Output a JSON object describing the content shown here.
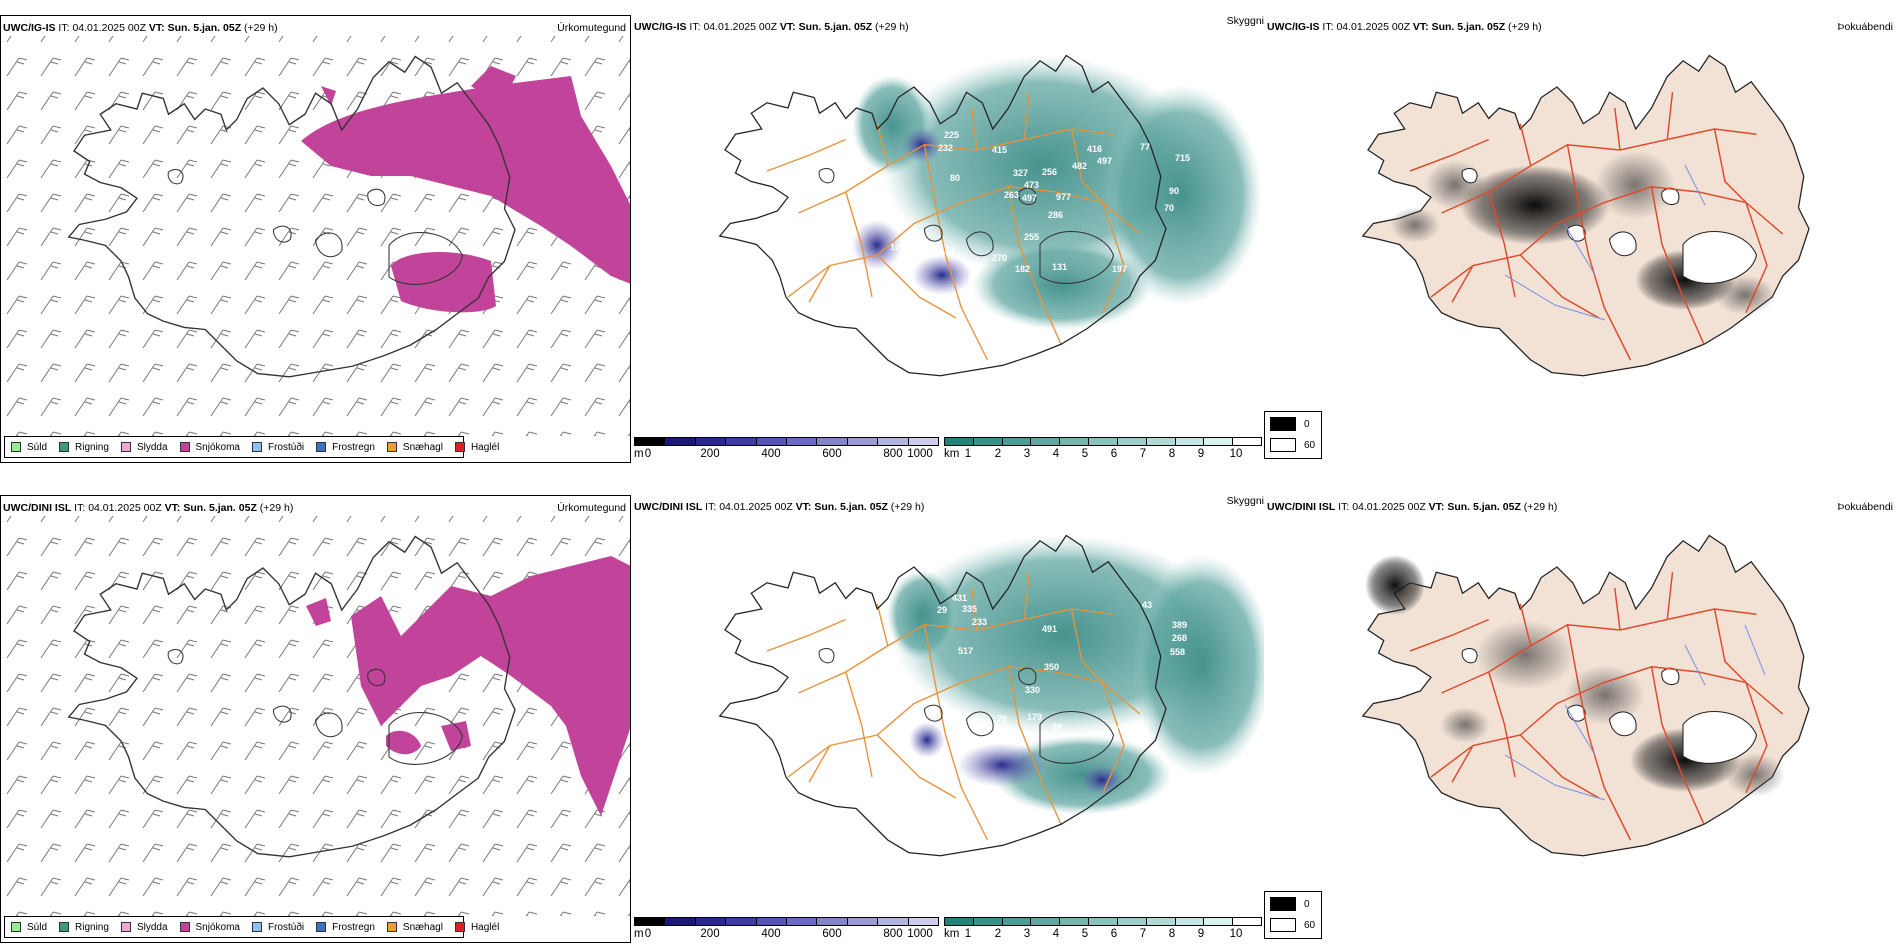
{
  "rows": [
    {
      "model": "UWC/IG-IS",
      "it_label": "IT:",
      "it_value": "04.01.2025 00Z",
      "vt_label": "VT:",
      "vt_value": "Sun. 5.jan. 05Z",
      "lead": "(+29 h)",
      "cloud_labels": [
        "225",
        "232",
        "80",
        "415",
        "327",
        "473",
        "497",
        "263",
        "256",
        "416",
        "482",
        "497",
        "977",
        "286",
        "77",
        "715",
        "90",
        "70",
        "255",
        "109",
        "121",
        "270",
        "182",
        "131",
        "197"
      ]
    },
    {
      "model": "UWC/DINI ISL",
      "it_label": "IT:",
      "it_value": "04.01.2025 00Z",
      "vt_label": "VT:",
      "vt_value": "Sun. 5.jan. 05Z",
      "lead": "(+29 h)",
      "cloud_labels": [
        "431",
        "29",
        "335",
        "233",
        "517",
        "491",
        "43",
        "389",
        "268",
        "558",
        "350",
        "330",
        "128",
        "79",
        "179",
        "99",
        "143"
      ]
    }
  ],
  "panel_names": {
    "precip": "Úrkomutegund",
    "cloud": "Skyggni",
    "fog": "Þokuábendi"
  },
  "precip_legend": [
    {
      "label": "Súld",
      "color": "#90ee90"
    },
    {
      "label": "Rigning",
      "color": "#3a9e6e"
    },
    {
      "label": "Slydda",
      "color": "#f2a8d6"
    },
    {
      "label": "Snjókoma",
      "color": "#c2449a"
    },
    {
      "label": "Frostúði",
      "color": "#8fbfef"
    },
    {
      "label": "Frostregn",
      "color": "#3d72c2"
    },
    {
      "label": "Snæhagl",
      "color": "#f0a020"
    },
    {
      "label": "Haglél",
      "color": "#e02020"
    }
  ],
  "cloudbase_scale": {
    "unit": "m",
    "ticks": [
      "0",
      "200",
      "400",
      "600",
      "800",
      "1000"
    ],
    "colors": [
      "#000000",
      "#1a1a6e",
      "#2a2a8c",
      "#3c3ca0",
      "#5555b0",
      "#6c6cbc",
      "#8484c8",
      "#9c9cd4",
      "#b4b4e0",
      "#ccccec"
    ]
  },
  "visibility_scale": {
    "unit": "km",
    "ticks": [
      "1",
      "2",
      "3",
      "4",
      "5",
      "6",
      "7",
      "8",
      "9",
      "10"
    ],
    "colors": [
      "#2a7f7a",
      "#3d8d88",
      "#4f9a95",
      "#62a7a2",
      "#75b4af",
      "#89c1bc",
      "#9dcdc9",
      "#b1dad6",
      "#c5e6e3",
      "#d9f2f0",
      "#ffffff"
    ]
  },
  "fog_legend": [
    {
      "value": "0",
      "color": "#000000"
    },
    {
      "value": "60",
      "color": "#ffffff"
    }
  ]
}
